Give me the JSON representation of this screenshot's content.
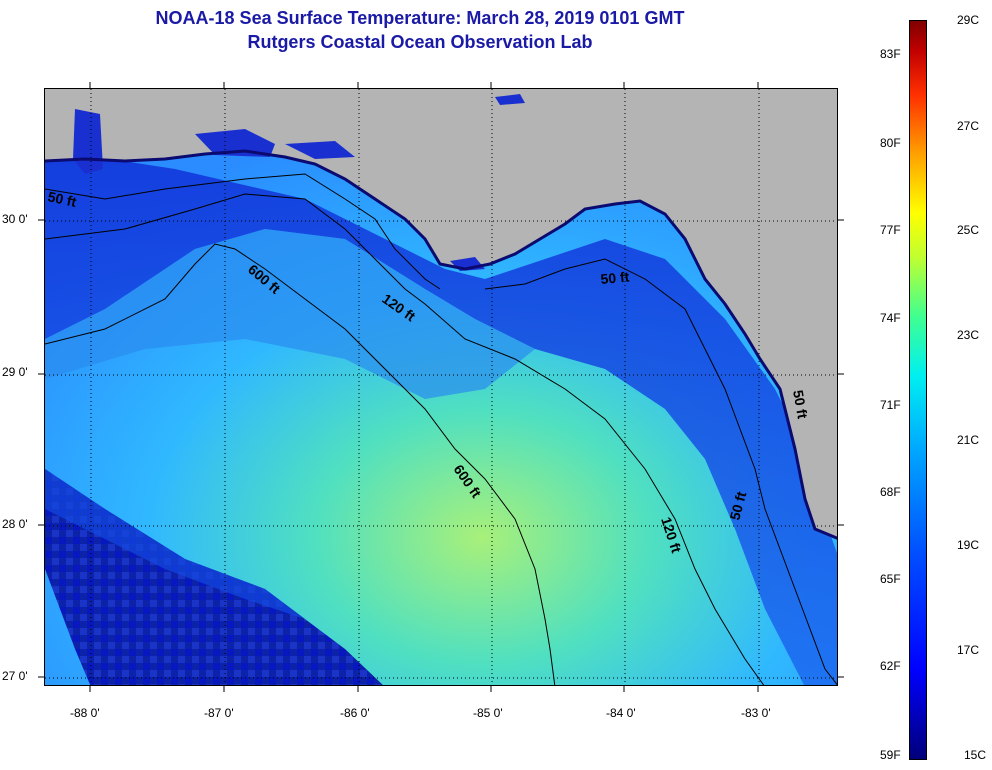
{
  "title_line1": "NOAA-18 Sea Surface Temperature:  March 28, 2019 0101 GMT",
  "title_line2": "Rutgers Coastal Ocean Observation Lab",
  "lat_labels": [
    "30 0'",
    "29 0'",
    "28 0'",
    "27 0'"
  ],
  "lon_labels": [
    "-88 0'",
    "-87 0'",
    "-86 0'",
    "-85 0'",
    "-84 0'",
    "-83 0'"
  ],
  "contour_labels": [
    "50 ft",
    "600 ft",
    "120 ft",
    "50 ft",
    "600 ft",
    "120 ft",
    "50 ft",
    "50 ft"
  ],
  "colorbar": {
    "fahrenheit": [
      "83F",
      "80F",
      "77F",
      "74F",
      "71F",
      "68F",
      "65F",
      "62F",
      "59F"
    ],
    "celsius": [
      "29C",
      "27C",
      "25C",
      "23C",
      "21C",
      "19C",
      "17C",
      "15C"
    ]
  },
  "colors": {
    "land": "#b4b4b4",
    "title": "#1a1aa6",
    "shelf_water": "#1446e6",
    "offshore_water": "#3cc8ff",
    "cold_water": "#0a1ea0"
  }
}
